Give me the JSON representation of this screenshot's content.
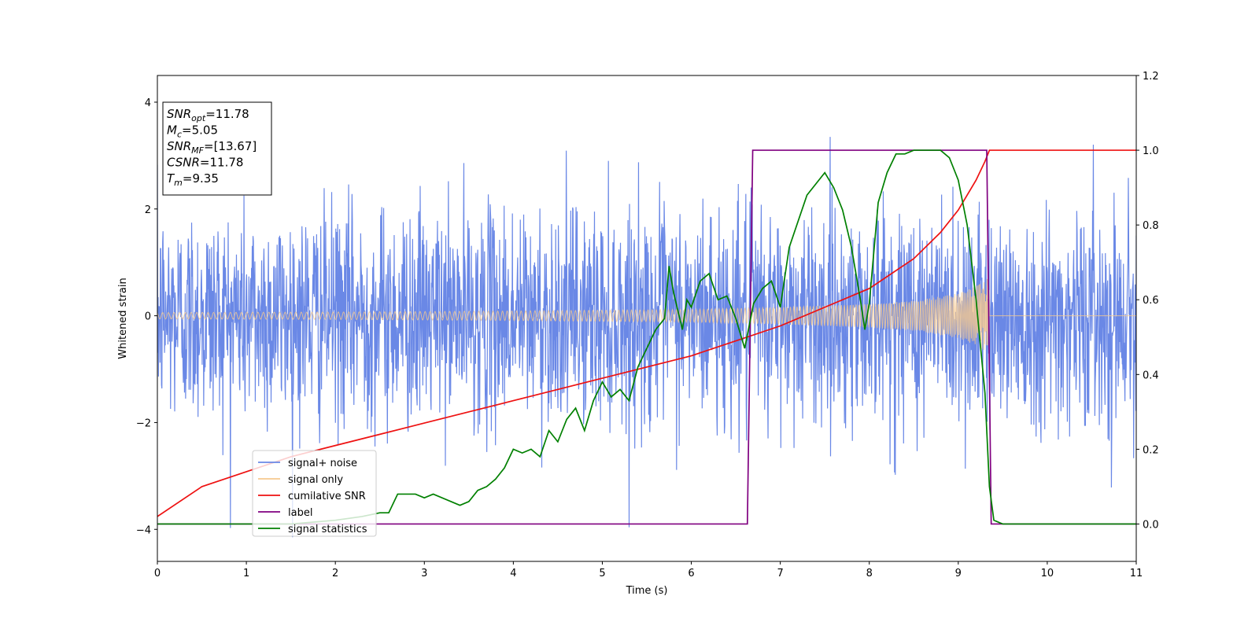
{
  "chart_data": {
    "type": "line",
    "title": "",
    "xlabel": "Time (s)",
    "ylabel": "Whitened strain",
    "y2label": "",
    "xlim": [
      0,
      11
    ],
    "ylim": [
      -4.6,
      4.5
    ],
    "y2lim": [
      -0.1,
      1.2
    ],
    "xticks": [
      "0",
      "1",
      "2",
      "3",
      "4",
      "5",
      "6",
      "7",
      "8",
      "9",
      "10",
      "11"
    ],
    "yticks": [
      "−4",
      "−2",
      "0",
      "2",
      "4"
    ],
    "y2ticks": [
      "0.0",
      "0.2",
      "0.4",
      "0.6",
      "0.8",
      "1.0",
      "1.2"
    ],
    "grid": false,
    "legend_position": "lower-left",
    "annotation": {
      "lines": [
        {
          "base": "SNR",
          "sub": "opt",
          "rest": "=11.78"
        },
        {
          "base": "M",
          "sub": "c",
          "rest": "=5.05"
        },
        {
          "base": "SNR",
          "sub": "MF",
          "rest": "=[13.67]"
        },
        {
          "base": "CSNR",
          "sub": "",
          "rest": "=11.78"
        },
        {
          "base": "T",
          "sub": "m",
          "rest": "=9.35"
        }
      ]
    },
    "series": [
      {
        "name": "signal+ noise",
        "color": "#6a88e6",
        "axis": "left",
        "kind": "noise",
        "description_values": {
          "duration": 11,
          "sigma": 1.0,
          "merger_time": 9.35
        }
      },
      {
        "name": "signal only",
        "color": "#f6c98e",
        "axis": "left",
        "kind": "chirp",
        "envelope": {
          "x": [
            0,
            2,
            4,
            6,
            7,
            8,
            8.5,
            9,
            9.2,
            9.35,
            9.36,
            11
          ],
          "y": [
            0.06,
            0.07,
            0.09,
            0.12,
            0.16,
            0.22,
            0.28,
            0.42,
            0.55,
            0.72,
            0.0,
            0.0
          ]
        }
      },
      {
        "name": "cumilative SNR",
        "color": "#ee1111",
        "axis": "right",
        "x": [
          0,
          0.5,
          1,
          1.5,
          2,
          2.5,
          3,
          3.5,
          4,
          4.5,
          5,
          5.5,
          6,
          6.5,
          7,
          7.5,
          8,
          8.5,
          8.8,
          9.0,
          9.2,
          9.3,
          9.35,
          9.4,
          10,
          11
        ],
        "y": [
          0.02,
          0.1,
          0.14,
          0.18,
          0.21,
          0.24,
          0.27,
          0.3,
          0.33,
          0.36,
          0.39,
          0.42,
          0.45,
          0.49,
          0.53,
          0.58,
          0.63,
          0.71,
          0.78,
          0.84,
          0.92,
          0.97,
          1.0,
          1.0,
          1.0,
          1.0
        ]
      },
      {
        "name": "label",
        "color": "#800080",
        "axis": "right",
        "x": [
          0,
          6.63,
          6.69,
          9.32,
          9.37,
          11
        ],
        "y": [
          0,
          0,
          1,
          1,
          0,
          0
        ]
      },
      {
        "name": "signal statistics",
        "color": "#008000",
        "axis": "right",
        "x": [
          0,
          0.5,
          1,
          1.5,
          2,
          2.3,
          2.5,
          2.6,
          2.7,
          2.9,
          3.0,
          3.1,
          3.3,
          3.4,
          3.5,
          3.6,
          3.7,
          3.8,
          3.9,
          4.0,
          4.1,
          4.2,
          4.3,
          4.4,
          4.5,
          4.6,
          4.7,
          4.8,
          4.9,
          5.0,
          5.1,
          5.2,
          5.3,
          5.4,
          5.5,
          5.6,
          5.7,
          5.75,
          5.8,
          5.9,
          5.95,
          6.0,
          6.1,
          6.2,
          6.3,
          6.4,
          6.5,
          6.6,
          6.7,
          6.8,
          6.9,
          7.0,
          7.1,
          7.2,
          7.3,
          7.4,
          7.5,
          7.6,
          7.7,
          7.8,
          7.9,
          7.95,
          8.0,
          8.1,
          8.2,
          8.3,
          8.4,
          8.5,
          8.6,
          8.7,
          8.8,
          8.9,
          9.0,
          9.1,
          9.2,
          9.3,
          9.35,
          9.4,
          9.5,
          10,
          11
        ],
        "y": [
          0,
          0,
          0.0,
          0.0,
          0.01,
          0.02,
          0.03,
          0.03,
          0.08,
          0.08,
          0.07,
          0.08,
          0.06,
          0.05,
          0.06,
          0.09,
          0.1,
          0.12,
          0.15,
          0.2,
          0.19,
          0.2,
          0.18,
          0.25,
          0.22,
          0.28,
          0.31,
          0.25,
          0.33,
          0.38,
          0.34,
          0.36,
          0.33,
          0.42,
          0.47,
          0.52,
          0.55,
          0.69,
          0.62,
          0.52,
          0.6,
          0.58,
          0.65,
          0.67,
          0.6,
          0.61,
          0.55,
          0.47,
          0.59,
          0.63,
          0.65,
          0.58,
          0.74,
          0.81,
          0.88,
          0.91,
          0.94,
          0.9,
          0.84,
          0.74,
          0.6,
          0.52,
          0.59,
          0.86,
          0.94,
          0.99,
          0.99,
          1.0,
          1.0,
          1.0,
          1.0,
          0.98,
          0.92,
          0.8,
          0.6,
          0.35,
          0.1,
          0.01,
          0.0,
          0.0,
          0.0
        ]
      }
    ]
  }
}
